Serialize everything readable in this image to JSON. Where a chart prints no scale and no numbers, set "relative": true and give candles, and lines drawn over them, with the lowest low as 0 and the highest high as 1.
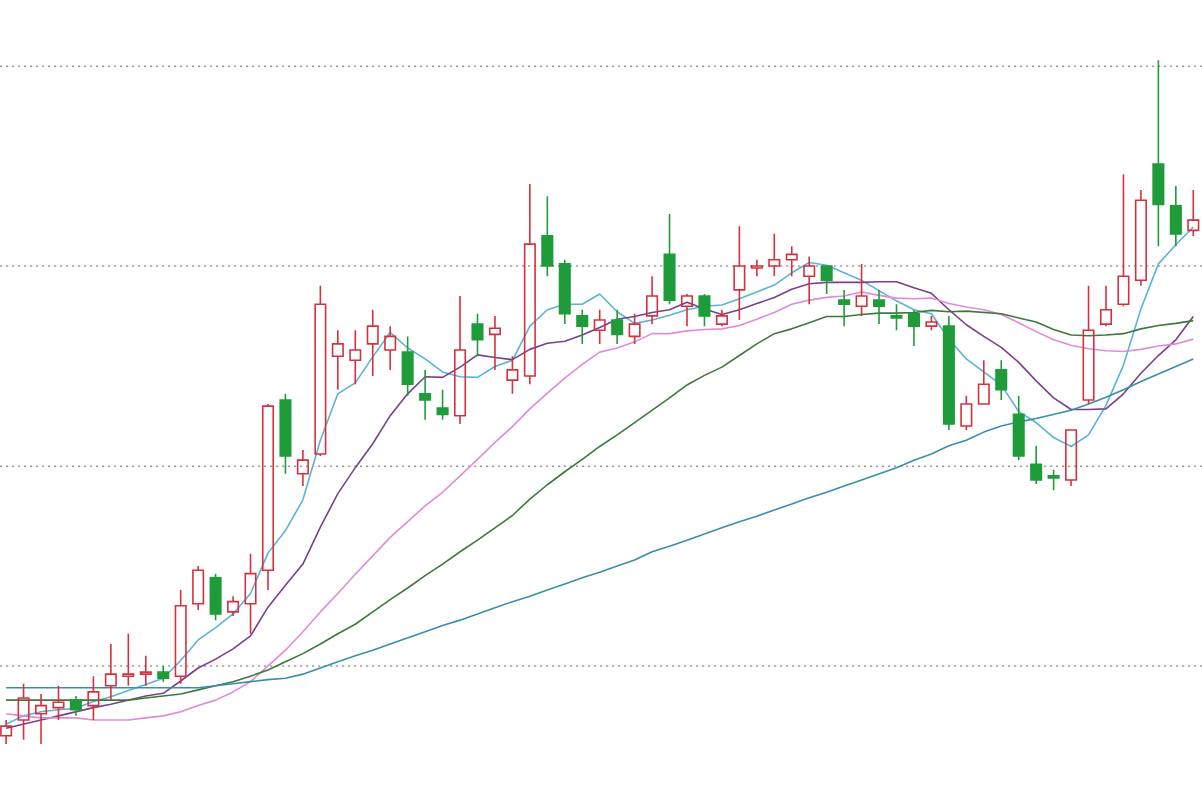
{
  "chart_data": {
    "type": "candlestick",
    "relative": true,
    "ref_lines": [
      {
        "axis": "y",
        "value": 0.114,
        "line_style": "dotted",
        "color": "#9e9e9e"
      },
      {
        "axis": "y",
        "value": 0.406,
        "line_style": "dotted",
        "color": "#9e9e9e"
      },
      {
        "axis": "y",
        "value": 0.699,
        "line_style": "dotted",
        "color": "#9e9e9e"
      },
      {
        "axis": "y",
        "value": 0.991,
        "line_style": "dotted",
        "color": "#9e9e9e"
      }
    ],
    "categories": [
      null,
      null,
      null,
      null,
      null,
      null,
      null,
      null,
      null,
      null,
      null,
      null,
      null,
      null,
      null,
      null,
      null,
      null,
      null,
      null,
      null,
      null,
      null,
      null,
      null,
      null,
      null,
      null,
      null,
      null,
      null,
      null,
      null,
      null,
      null,
      null,
      null,
      null,
      null,
      null,
      null,
      null,
      null,
      null,
      null,
      null,
      null,
      null,
      null,
      null,
      null,
      null,
      null,
      null,
      null,
      null,
      null,
      null,
      null,
      null,
      null,
      null,
      null,
      null,
      null,
      null,
      null,
      null,
      null
    ],
    "ohlc": [
      [
        0.012,
        0.035,
        0,
        0.026
      ],
      [
        0.035,
        0.088,
        0.006,
        0.067
      ],
      [
        0.044,
        0.073,
        0,
        0.056
      ],
      [
        0.053,
        0.085,
        0.035,
        0.061
      ],
      [
        0.064,
        0.07,
        0.041,
        0.05
      ],
      [
        0.056,
        0.099,
        0.035,
        0.076
      ],
      [
        0.085,
        0.146,
        0.064,
        0.102
      ],
      [
        0.099,
        0.161,
        0.085,
        0.102
      ],
      [
        0.102,
        0.129,
        0.085,
        0.105
      ],
      [
        0.105,
        0.114,
        0.091,
        0.096
      ],
      [
        0.099,
        0.225,
        0.088,
        0.202
      ],
      [
        0.205,
        0.26,
        0.196,
        0.254
      ],
      [
        0.243,
        0.249,
        0.181,
        0.19
      ],
      [
        0.193,
        0.216,
        0.187,
        0.208
      ],
      [
        0.205,
        0.278,
        0.161,
        0.249
      ],
      [
        0.254,
        0.497,
        0.225,
        0.494
      ],
      [
        0.503,
        0.512,
        0.395,
        0.421
      ],
      [
        0.395,
        0.43,
        0.377,
        0.415
      ],
      [
        0.424,
        0.67,
        0.421,
        0.643
      ],
      [
        0.567,
        0.605,
        0.518,
        0.585
      ],
      [
        0.561,
        0.605,
        0.526,
        0.576
      ],
      [
        0.585,
        0.635,
        0.538,
        0.611
      ],
      [
        0.576,
        0.611,
        0.547,
        0.596
      ],
      [
        0.573,
        0.596,
        0.509,
        0.526
      ],
      [
        0.512,
        0.547,
        0.474,
        0.503
      ],
      [
        0.491,
        0.518,
        0.474,
        0.482
      ],
      [
        0.48,
        0.655,
        0.468,
        0.576
      ],
      [
        0.614,
        0.629,
        0.567,
        0.591
      ],
      [
        0.599,
        0.626,
        0.547,
        0.608
      ],
      [
        0.532,
        0.567,
        0.512,
        0.547
      ],
      [
        0.538,
        0.819,
        0.526,
        0.731
      ],
      [
        0.743,
        0.801,
        0.684,
        0.699
      ],
      [
        0.702,
        0.708,
        0.614,
        0.629
      ],
      [
        0.626,
        0.635,
        0.585,
        0.611
      ],
      [
        0.605,
        0.635,
        0.585,
        0.62
      ],
      [
        0.62,
        0.635,
        0.585,
        0.599
      ],
      [
        0.596,
        0.629,
        0.585,
        0.614
      ],
      [
        0.626,
        0.684,
        0.614,
        0.655
      ],
      [
        0.716,
        0.775,
        0.643,
        0.649
      ],
      [
        0.64,
        0.658,
        0.611,
        0.655
      ],
      [
        0.655,
        0.658,
        0.611,
        0.626
      ],
      [
        0.614,
        0.635,
        0.611,
        0.626
      ],
      [
        0.664,
        0.757,
        0.62,
        0.699
      ],
      [
        0.696,
        0.708,
        0.684,
        0.699
      ],
      [
        0.699,
        0.746,
        0.684,
        0.708
      ],
      [
        0.708,
        0.728,
        0.684,
        0.716
      ],
      [
        0.684,
        0.713,
        0.643,
        0.699
      ],
      [
        0.699,
        0.699,
        0.658,
        0.678
      ],
      [
        0.649,
        0.664,
        0.611,
        0.643
      ],
      [
        0.64,
        0.702,
        0.626,
        0.655
      ],
      [
        0.649,
        0.664,
        0.614,
        0.64
      ],
      [
        0.626,
        0.643,
        0.605,
        0.623
      ],
      [
        0.629,
        0.635,
        0.582,
        0.611
      ],
      [
        0.611,
        0.626,
        0.605,
        0.617
      ],
      [
        0.611,
        0.626,
        0.459,
        0.468
      ],
      [
        0.465,
        0.509,
        0.459,
        0.497
      ],
      [
        0.497,
        0.561,
        0.497,
        0.526
      ],
      [
        0.547,
        0.561,
        0.503,
        0.518
      ],
      [
        0.482,
        0.509,
        0.415,
        0.421
      ],
      [
        0.409,
        0.436,
        0.38,
        0.386
      ],
      [
        0.392,
        0.401,
        0.371,
        0.389
      ],
      [
        0.386,
        0.459,
        0.377,
        0.459
      ],
      [
        0.503,
        0.67,
        0.497,
        0.605
      ],
      [
        0.614,
        0.67,
        0.611,
        0.635
      ],
      [
        0.643,
        0.833,
        0.64,
        0.684
      ],
      [
        0.678,
        0.81,
        0.67,
        0.795
      ],
      [
        0.848,
        1,
        0.728,
        0.789
      ],
      [
        0.787,
        0.816,
        0.728,
        0.746
      ],
      [
        0.751,
        0.81,
        0.743,
        0.766
      ]
    ],
    "colors": [
      "#d6303e",
      "#d6303e",
      "#d6303e",
      "#d6303e",
      "#1e9c3a",
      "#d6303e",
      "#d6303e",
      "#d6303e",
      "#d6303e",
      "#1e9c3a",
      "#d6303e",
      "#d6303e",
      "#1e9c3a",
      "#d6303e",
      "#d6303e",
      "#d6303e",
      "#1e9c3a",
      "#d6303e",
      "#d6303e",
      "#d6303e",
      "#d6303e",
      "#d6303e",
      "#d6303e",
      "#1e9c3a",
      "#1e9c3a",
      "#1e9c3a",
      "#d6303e",
      "#1e9c3a",
      "#d6303e",
      "#d6303e",
      "#d6303e",
      "#1e9c3a",
      "#1e9c3a",
      "#1e9c3a",
      "#d6303e",
      "#1e9c3a",
      "#d6303e",
      "#d6303e",
      "#1e9c3a",
      "#d6303e",
      "#1e9c3a",
      "#d6303e",
      "#d6303e",
      "#d6303e",
      "#d6303e",
      "#d6303e",
      "#d6303e",
      "#1e9c3a",
      "#1e9c3a",
      "#d6303e",
      "#1e9c3a",
      "#1e9c3a",
      "#1e9c3a",
      "#d6303e",
      "#1e9c3a",
      "#d6303e",
      "#d6303e",
      "#1e9c3a",
      "#1e9c3a",
      "#1e9c3a",
      "#1e9c3a",
      "#d6303e",
      "#d6303e",
      "#d6303e",
      "#d6303e",
      "#d6303e",
      "#1e9c3a",
      "#1e9c3a",
      "#d6303e"
    ],
    "series": [
      {
        "type": "line",
        "color": "#5ab4d6",
        "values": [
          0.029,
          0.041,
          0.047,
          0.05,
          0.052,
          0.062,
          0.069,
          0.078,
          0.087,
          0.096,
          0.122,
          0.152,
          0.17,
          0.19,
          0.22,
          0.279,
          0.312,
          0.357,
          0.444,
          0.512,
          0.528,
          0.566,
          0.602,
          0.579,
          0.563,
          0.544,
          0.537,
          0.536,
          0.552,
          0.561,
          0.611,
          0.635,
          0.643,
          0.643,
          0.658,
          0.632,
          0.615,
          0.62,
          0.627,
          0.635,
          0.64,
          0.642,
          0.651,
          0.661,
          0.671,
          0.689,
          0.704,
          0.7,
          0.689,
          0.678,
          0.663,
          0.648,
          0.635,
          0.629,
          0.592,
          0.563,
          0.544,
          0.525,
          0.486,
          0.47,
          0.448,
          0.435,
          0.452,
          0.495,
          0.554,
          0.636,
          0.702,
          0.73,
          0.756
        ]
      },
      {
        "type": "line",
        "color": "#7b3f8c",
        "values": [
          0.023,
          0.029,
          0.035,
          0.041,
          0.047,
          0.053,
          0.058,
          0.064,
          0.07,
          0.074,
          0.092,
          0.111,
          0.124,
          0.139,
          0.158,
          0.2,
          0.232,
          0.263,
          0.317,
          0.366,
          0.404,
          0.439,
          0.48,
          0.512,
          0.537,
          0.536,
          0.551,
          0.569,
          0.565,
          0.562,
          0.577,
          0.586,
          0.589,
          0.598,
          0.609,
          0.621,
          0.625,
          0.631,
          0.635,
          0.646,
          0.636,
          0.628,
          0.635,
          0.644,
          0.653,
          0.665,
          0.673,
          0.675,
          0.675,
          0.675,
          0.676,
          0.676,
          0.667,
          0.659,
          0.635,
          0.613,
          0.596,
          0.58,
          0.558,
          0.531,
          0.506,
          0.489,
          0.489,
          0.49,
          0.512,
          0.542,
          0.568,
          0.591,
          0.625
        ]
      },
      {
        "type": "line",
        "color": "#e08bd8",
        "values": [
          0.044,
          0.041,
          0.038,
          0.038,
          0.038,
          0.035,
          0.035,
          0.035,
          0.038,
          0.041,
          0.047,
          0.056,
          0.064,
          0.076,
          0.091,
          0.114,
          0.137,
          0.164,
          0.193,
          0.22,
          0.248,
          0.275,
          0.302,
          0.325,
          0.348,
          0.368,
          0.392,
          0.416,
          0.441,
          0.464,
          0.49,
          0.513,
          0.535,
          0.555,
          0.573,
          0.579,
          0.588,
          0.6,
          0.6,
          0.604,
          0.606,
          0.607,
          0.612,
          0.621,
          0.631,
          0.643,
          0.649,
          0.653,
          0.655,
          0.661,
          0.656,
          0.652,
          0.651,
          0.652,
          0.644,
          0.639,
          0.635,
          0.628,
          0.616,
          0.603,
          0.591,
          0.583,
          0.578,
          0.575,
          0.574,
          0.577,
          0.582,
          0.585,
          0.592
        ]
      },
      {
        "type": "line",
        "color": "#3c7a3c",
        "values": [
          0.064,
          0.064,
          0.064,
          0.064,
          0.064,
          0.064,
          0.064,
          0.064,
          0.067,
          0.07,
          0.073,
          0.079,
          0.085,
          0.091,
          0.099,
          0.108,
          0.12,
          0.132,
          0.146,
          0.161,
          0.175,
          0.193,
          0.211,
          0.228,
          0.246,
          0.263,
          0.281,
          0.298,
          0.316,
          0.334,
          0.358,
          0.379,
          0.398,
          0.416,
          0.435,
          0.452,
          0.47,
          0.488,
          0.506,
          0.525,
          0.539,
          0.551,
          0.568,
          0.585,
          0.6,
          0.607,
          0.616,
          0.625,
          0.625,
          0.628,
          0.63,
          0.63,
          0.631,
          0.634,
          0.632,
          0.633,
          0.631,
          0.629,
          0.623,
          0.617,
          0.606,
          0.598,
          0.597,
          0.598,
          0.6,
          0.607,
          0.612,
          0.615,
          0.619
        ]
      },
      {
        "type": "line",
        "color": "#3b8eaa",
        "values": [
          0.082,
          0.082,
          0.082,
          0.082,
          0.082,
          0.082,
          0.082,
          0.082,
          0.082,
          0.082,
          0.082,
          0.082,
          0.085,
          0.088,
          0.091,
          0.094,
          0.096,
          0.102,
          0.111,
          0.12,
          0.129,
          0.137,
          0.146,
          0.155,
          0.164,
          0.173,
          0.181,
          0.19,
          0.199,
          0.208,
          0.216,
          0.225,
          0.234,
          0.243,
          0.251,
          0.26,
          0.269,
          0.281,
          0.289,
          0.298,
          0.307,
          0.316,
          0.325,
          0.333,
          0.342,
          0.351,
          0.36,
          0.368,
          0.377,
          0.386,
          0.395,
          0.404,
          0.415,
          0.424,
          0.436,
          0.444,
          0.456,
          0.465,
          0.471,
          0.476,
          0.482,
          0.488,
          0.497,
          0.507,
          0.518,
          0.53,
          0.541,
          0.552,
          0.563
        ]
      }
    ]
  }
}
